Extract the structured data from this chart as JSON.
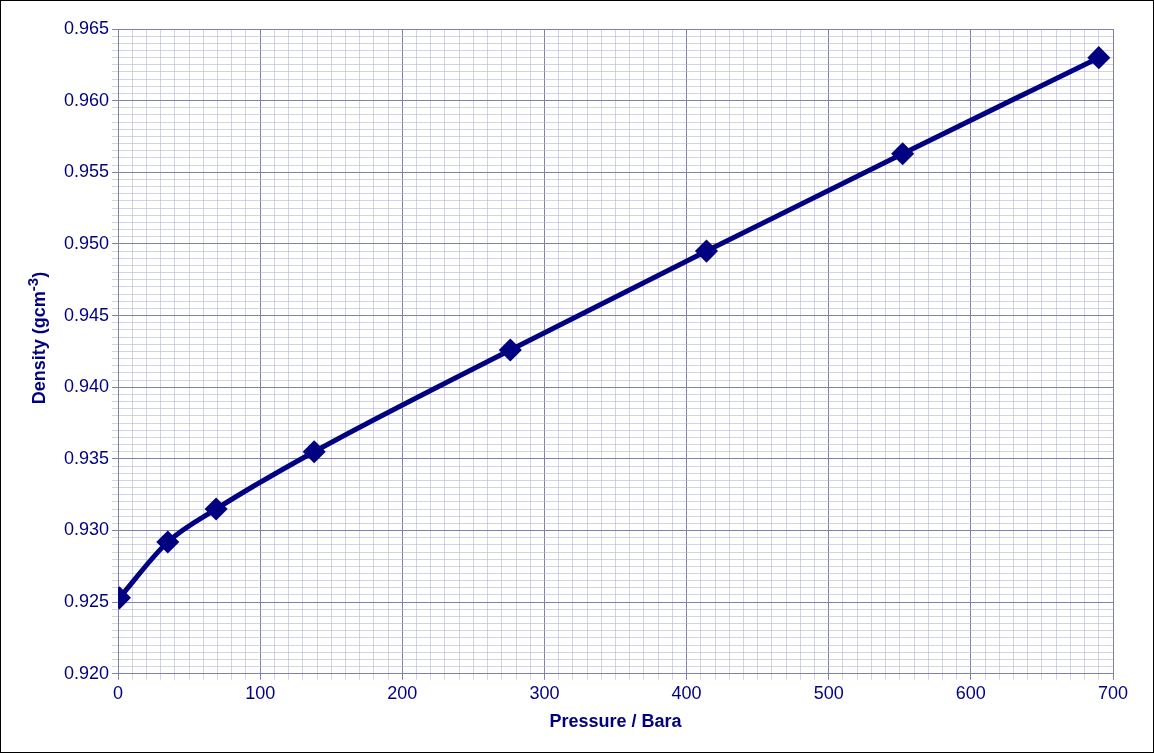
{
  "chart_data": {
    "type": "line",
    "xlabel": "Pressure / Bara",
    "ylabel": "Density (gcm$^{-3}$)",
    "x": [
      1,
      35,
      69,
      138,
      276,
      414,
      552,
      690
    ],
    "series": [
      {
        "color": "#000080",
        "values": [
          0.9253,
          0.9292,
          0.9315,
          0.9355,
          0.9426,
          0.9495,
          0.9563,
          0.963
        ]
      }
    ],
    "xlim": [
      0,
      700
    ],
    "xticks": [
      0,
      {
        "value": 10,
        "label": null
      },
      {
        "value": 20,
        "label": null
      },
      {
        "value": 30,
        "label": null
      },
      {
        "value": 40,
        "label": null
      },
      {
        "value": 50,
        "label": null
      },
      {
        "value": 60,
        "label": null
      },
      {
        "value": 70,
        "label": null
      },
      {
        "value": 80,
        "label": null
      },
      {
        "value": 90,
        "label": null
      },
      100,
      {
        "value": 110,
        "label": null
      },
      {
        "value": 120,
        "label": null
      },
      {
        "value": 130,
        "label": null
      },
      {
        "value": 140,
        "label": null
      },
      {
        "value": 150,
        "label": null
      },
      {
        "value": 160,
        "label": null
      },
      {
        "value": 170,
        "label": null
      },
      {
        "value": 180,
        "label": null
      },
      {
        "value": 190,
        "label": null
      },
      200,
      {
        "value": 210,
        "label": null
      },
      {
        "value": 220,
        "label": null
      },
      {
        "value": 230,
        "label": null
      },
      {
        "value": 240,
        "label": null
      },
      {
        "value": 250,
        "label": null
      },
      {
        "value": 260,
        "label": null
      },
      {
        "value": 270,
        "label": null
      },
      {
        "value": 280,
        "label": null
      },
      {
        "value": 290,
        "label": null
      },
      300,
      {
        "value": 310,
        "label": null
      },
      {
        "value": 320,
        "label": null
      },
      {
        "value": 330,
        "label": null
      },
      {
        "value": 340,
        "label": null
      },
      {
        "value": 350,
        "label": null
      },
      {
        "value": 360,
        "label": null
      },
      {
        "value": 370,
        "label": null
      },
      {
        "value": 380,
        "label": null
      },
      {
        "value": 390,
        "label": null
      },
      400,
      {
        "value": 410,
        "label": null
      },
      {
        "value": 420,
        "label": null
      },
      {
        "value": 430,
        "label": null
      },
      {
        "value": 440,
        "label": null
      },
      {
        "value": 450,
        "label": null
      },
      {
        "value": 460,
        "label": null
      },
      {
        "value": 470,
        "label": null
      },
      {
        "value": 480,
        "label": null
      },
      {
        "value": 490,
        "label": null
      },
      500,
      {
        "value": 510,
        "label": null
      },
      {
        "value": 520,
        "label": null
      },
      {
        "value": 530,
        "label": null
      },
      {
        "value": 540,
        "label": null
      },
      {
        "value": 550,
        "label": null
      },
      {
        "value": 560,
        "label": null
      },
      {
        "value": 570,
        "label": null
      },
      {
        "value": 580,
        "label": null
      },
      {
        "value": 590,
        "label": null
      },
      600,
      {
        "value": 610,
        "label": null
      },
      {
        "value": 620,
        "label": null
      },
      {
        "value": 630,
        "label": null
      },
      {
        "value": 640,
        "label": null
      },
      {
        "value": 650,
        "label": null
      },
      {
        "value": 660,
        "label": null
      },
      {
        "value": 670,
        "label": null
      },
      {
        "value": 680,
        "label": null
      },
      {
        "value": 690,
        "label": null
      },
      700
    ],
    "ylim": [
      0.92,
      0.965
    ],
    "yticks": [
      {
        "value": 0.92,
        "label": "0.920"
      },
      {
        "value": 0.9205,
        "label": null
      },
      {
        "value": 0.921,
        "label": null
      },
      {
        "value": 0.9215,
        "label": null
      },
      {
        "value": 0.922,
        "label": null
      },
      {
        "value": 0.9225,
        "label": null
      },
      {
        "value": 0.923,
        "label": null
      },
      {
        "value": 0.9235,
        "label": null
      },
      {
        "value": 0.924,
        "label": null
      },
      {
        "value": 0.9245,
        "label": null
      },
      {
        "value": 0.925,
        "label": "0.925"
      },
      {
        "value": 0.9255,
        "label": null
      },
      {
        "value": 0.926,
        "label": null
      },
      {
        "value": 0.9265,
        "label": null
      },
      {
        "value": 0.927,
        "label": null
      },
      {
        "value": 0.9275,
        "label": null
      },
      {
        "value": 0.928,
        "label": null
      },
      {
        "value": 0.9285,
        "label": null
      },
      {
        "value": 0.929,
        "label": null
      },
      {
        "value": 0.9295,
        "label": null
      },
      {
        "value": 0.93,
        "label": "0.930"
      },
      {
        "value": 0.9305,
        "label": null
      },
      {
        "value": 0.931,
        "label": null
      },
      {
        "value": 0.9315,
        "label": null
      },
      {
        "value": 0.932,
        "label": null
      },
      {
        "value": 0.9325,
        "label": null
      },
      {
        "value": 0.933,
        "label": null
      },
      {
        "value": 0.9335,
        "label": null
      },
      {
        "value": 0.934,
        "label": null
      },
      {
        "value": 0.9345,
        "label": null
      },
      {
        "value": 0.935,
        "label": "0.935"
      },
      {
        "value": 0.9355,
        "label": null
      },
      {
        "value": 0.936,
        "label": null
      },
      {
        "value": 0.9365,
        "label": null
      },
      {
        "value": 0.937,
        "label": null
      },
      {
        "value": 0.9375,
        "label": null
      },
      {
        "value": 0.938,
        "label": null
      },
      {
        "value": 0.9385,
        "label": null
      },
      {
        "value": 0.939,
        "label": null
      },
      {
        "value": 0.9395,
        "label": null
      },
      {
        "value": 0.94,
        "label": "0.940"
      },
      {
        "value": 0.9405,
        "label": null
      },
      {
        "value": 0.941,
        "label": null
      },
      {
        "value": 0.9415,
        "label": null
      },
      {
        "value": 0.942,
        "label": null
      },
      {
        "value": 0.9425,
        "label": null
      },
      {
        "value": 0.943,
        "label": null
      },
      {
        "value": 0.9435,
        "label": null
      },
      {
        "value": 0.944,
        "label": null
      },
      {
        "value": 0.9445,
        "label": null
      },
      {
        "value": 0.945,
        "label": "0.945"
      },
      {
        "value": 0.9455,
        "label": null
      },
      {
        "value": 0.946,
        "label": null
      },
      {
        "value": 0.9465,
        "label": null
      },
      {
        "value": 0.947,
        "label": null
      },
      {
        "value": 0.9475,
        "label": null
      },
      {
        "value": 0.948,
        "label": null
      },
      {
        "value": 0.9485,
        "label": null
      },
      {
        "value": 0.949,
        "label": null
      },
      {
        "value": 0.9495,
        "label": null
      },
      {
        "value": 0.95,
        "label": "0.950"
      },
      {
        "value": 0.9505,
        "label": null
      },
      {
        "value": 0.951,
        "label": null
      },
      {
        "value": 0.9515,
        "label": null
      },
      {
        "value": 0.952,
        "label": null
      },
      {
        "value": 0.9525,
        "label": null
      },
      {
        "value": 0.953,
        "label": null
      },
      {
        "value": 0.9535,
        "label": null
      },
      {
        "value": 0.954,
        "label": null
      },
      {
        "value": 0.9545,
        "label": null
      },
      {
        "value": 0.955,
        "label": "0.955"
      },
      {
        "value": 0.9555,
        "label": null
      },
      {
        "value": 0.956,
        "label": null
      },
      {
        "value": 0.9565,
        "label": null
      },
      {
        "value": 0.957,
        "label": null
      },
      {
        "value": 0.9575,
        "label": null
      },
      {
        "value": 0.958,
        "label": null
      },
      {
        "value": 0.9585,
        "label": null
      },
      {
        "value": 0.959,
        "label": null
      },
      {
        "value": 0.9595,
        "label": null
      },
      {
        "value": 0.96,
        "label": "0.960"
      },
      {
        "value": 0.9605,
        "label": null
      },
      {
        "value": 0.961,
        "label": null
      },
      {
        "value": 0.9615,
        "label": null
      },
      {
        "value": 0.962,
        "label": null
      },
      {
        "value": 0.9625,
        "label": null
      },
      {
        "value": 0.963,
        "label": null
      },
      {
        "value": 0.9635,
        "label": null
      },
      {
        "value": 0.964,
        "label": null
      },
      {
        "value": 0.9645,
        "label": null
      },
      {
        "value": 0.965,
        "label": "0.965"
      }
    ],
    "grid": true,
    "legend": false,
    "marker": "diamond",
    "line_style": "solid"
  }
}
